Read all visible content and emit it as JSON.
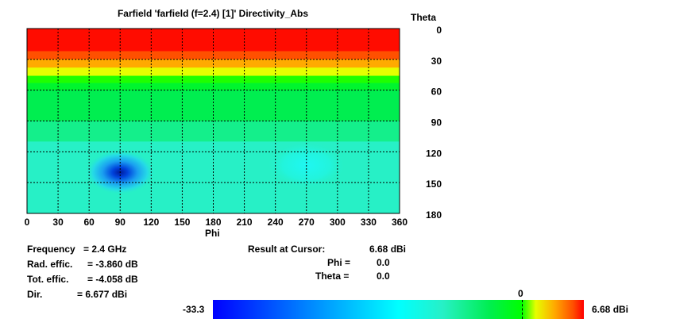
{
  "chart_data": {
    "type": "heatmap",
    "title": "Farfield 'farfield (f=2.4) [1]' Directivity_Abs",
    "xlabel": "Phi",
    "ylabel": "Theta",
    "x_ticks": [
      "0",
      "30",
      "60",
      "90",
      "120",
      "150",
      "180",
      "210",
      "240",
      "270",
      "300",
      "330",
      "360"
    ],
    "y_ticks": [
      "0",
      "30",
      "60",
      "90",
      "120",
      "150",
      "180"
    ],
    "xlim": [
      0,
      360
    ],
    "ylim": [
      0,
      180
    ],
    "grid": true,
    "color_scale": {
      "min": -33.3,
      "max": 6.68,
      "min_label": "-33.3",
      "max_label": "6.68 dBi",
      "marker_value": 0,
      "marker_label": "0",
      "unit": "dBi"
    },
    "theta_bands": [
      {
        "theta": [
          0,
          22
        ],
        "directivity": 6.5
      },
      {
        "theta": [
          22,
          30
        ],
        "directivity": 5.5
      },
      {
        "theta": [
          30,
          38
        ],
        "directivity": 3.5
      },
      {
        "theta": [
          38,
          46
        ],
        "directivity": 1.5
      },
      {
        "theta": [
          46,
          53
        ],
        "directivity": 0.2
      },
      {
        "theta": [
          53,
          60
        ],
        "directivity": -2.0
      },
      {
        "theta": [
          60,
          90
        ],
        "directivity": -3.5
      },
      {
        "theta": [
          90,
          110
        ],
        "directivity": -6.0
      },
      {
        "theta": [
          110,
          180
        ],
        "directivity": -8.5
      }
    ],
    "features": [
      {
        "phi": 90,
        "theta": 140,
        "directivity": -33.3,
        "type": "null"
      },
      {
        "phi": 270,
        "theta": 133,
        "directivity": -12.0,
        "type": "minimum"
      }
    ]
  },
  "info": {
    "frequency_label": "Frequency",
    "frequency_value": "= 2.4 GHz",
    "rad_effic_label": "Rad. effic.",
    "rad_effic_value": "= -3.860 dB",
    "tot_effic_label": "Tot. effic.",
    "tot_effic_value": "= -4.058 dB",
    "dir_label": "Dir.",
    "dir_value": "= 6.677 dBi"
  },
  "cursor": {
    "result_label": "Result at Cursor:",
    "result_value": "6.68 dBi",
    "phi_label": "Phi =",
    "phi_value": "0.0",
    "theta_label": "Theta =",
    "theta_value": "0.0"
  },
  "colors": {
    "red": "#ff0000",
    "orange": "#ff8c00",
    "yellow": "#ffff00",
    "green": "#00ff00",
    "cyan": "#00ffff",
    "blue": "#0000ff",
    "grid": "#000000"
  }
}
